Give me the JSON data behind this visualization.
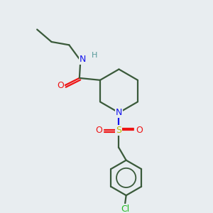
{
  "background_color": "#e8edf0",
  "bond_color": "#3a5a3a",
  "N_color": "#1414ee",
  "O_color": "#ee1414",
  "S_color": "#bbbb00",
  "Cl_color": "#22bb22",
  "H_color": "#559999",
  "figsize": [
    3.0,
    3.0
  ],
  "dpi": 100,
  "xlim": [
    0,
    10
  ],
  "ylim": [
    0,
    10
  ],
  "lw": 1.6
}
